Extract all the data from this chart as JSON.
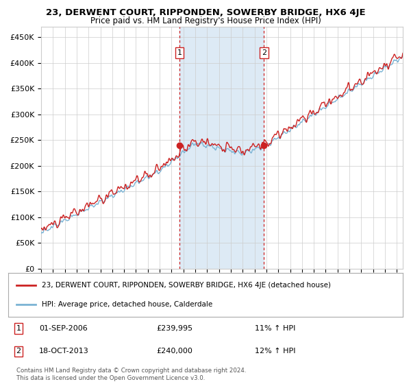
{
  "title": "23, DERWENT COURT, RIPPONDEN, SOWERBY BRIDGE, HX6 4JE",
  "subtitle": "Price paid vs. HM Land Registry's House Price Index (HPI)",
  "ylabel_ticks": [
    "£0",
    "£50K",
    "£100K",
    "£150K",
    "£200K",
    "£250K",
    "£300K",
    "£350K",
    "£400K",
    "£450K"
  ],
  "ylim": [
    0,
    470000
  ],
  "xlim_start": 1995.0,
  "xlim_end": 2025.5,
  "transaction1_date": 2006.67,
  "transaction1_price": 239995,
  "transaction1_label": "1",
  "transaction1_display": "01-SEP-2006",
  "transaction1_price_display": "£239,995",
  "transaction1_hpi": "11% ↑ HPI",
  "transaction2_date": 2013.79,
  "transaction2_price": 240000,
  "transaction2_label": "2",
  "transaction2_display": "18-OCT-2013",
  "transaction2_price_display": "£240,000",
  "transaction2_hpi": "12% ↑ HPI",
  "hpi_line_color": "#7ab3d4",
  "sale_line_color": "#cc2222",
  "legend_label_sale": "23, DERWENT COURT, RIPPONDEN, SOWERBY BRIDGE, HX6 4JE (detached house)",
  "legend_label_hpi": "HPI: Average price, detached house, Calderdale",
  "footnote": "Contains HM Land Registry data © Crown copyright and database right 2024.\nThis data is licensed under the Open Government Licence v3.0.",
  "background_color": "#ffffff",
  "shaded_region_color": "#ddeaf5",
  "grid_color": "#cccccc"
}
